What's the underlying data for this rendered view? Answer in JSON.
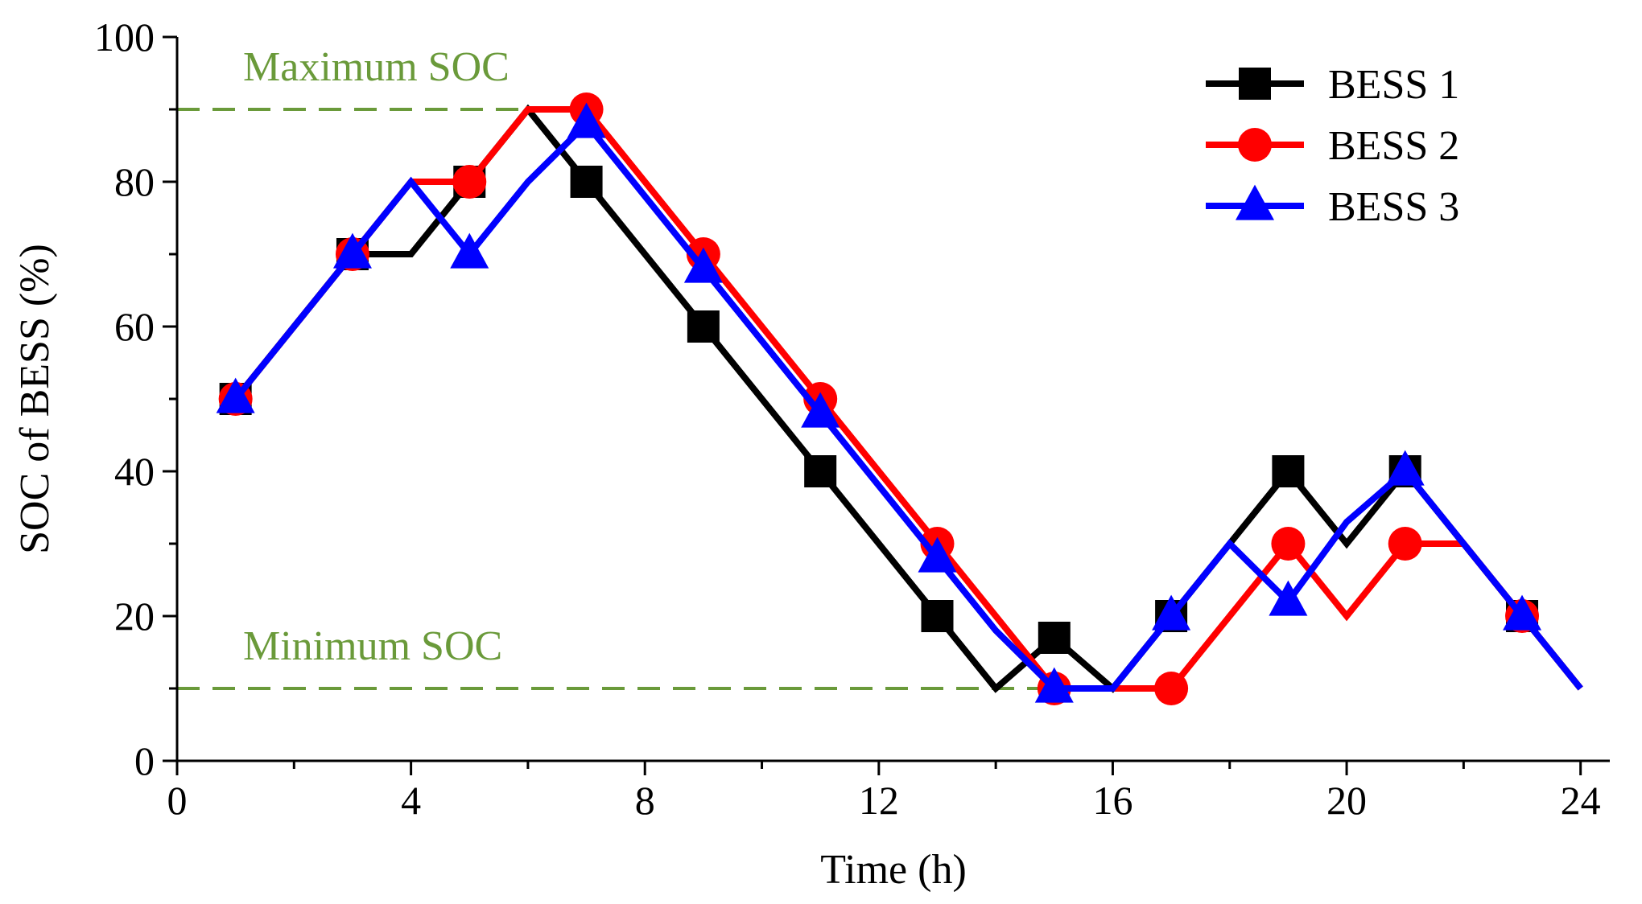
{
  "chart_data": {
    "type": "line",
    "title": "",
    "xlabel": "Time (h)",
    "ylabel": "SOC of BESS (%)",
    "xlim": [
      0,
      24.5
    ],
    "ylim": [
      0,
      100
    ],
    "xticks": [
      0,
      4,
      8,
      12,
      16,
      20,
      24
    ],
    "yticks": [
      0,
      20,
      40,
      60,
      80,
      100
    ],
    "x": [
      1,
      2,
      3,
      4,
      5,
      6,
      7,
      8,
      9,
      10,
      11,
      12,
      13,
      14,
      15,
      16,
      17,
      18,
      19,
      20,
      21,
      22,
      23,
      24
    ],
    "series": [
      {
        "name": "BESS 1",
        "color": "#000000",
        "marker": "square",
        "values": [
          50,
          60,
          70,
          70,
          80,
          90,
          80,
          70,
          60,
          50,
          40,
          30,
          20,
          10,
          17,
          10,
          20,
          30,
          40,
          30,
          40,
          30,
          20,
          10
        ]
      },
      {
        "name": "BESS 2",
        "color": "#ff0000",
        "marker": "circle",
        "values": [
          50,
          60,
          70,
          80,
          80,
          90,
          90,
          80,
          70,
          60,
          50,
          40,
          30,
          20,
          10,
          10,
          10,
          20,
          30,
          20,
          30,
          30,
          20,
          10
        ]
      },
      {
        "name": "BESS 3",
        "color": "#0000ff",
        "marker": "triangle",
        "values": [
          50,
          60,
          70,
          80,
          70,
          80,
          88,
          78,
          68,
          58,
          48,
          38,
          28,
          18,
          10,
          10,
          20,
          30,
          22,
          33,
          40,
          30,
          20,
          10
        ]
      }
    ],
    "reference_lines": [
      {
        "label": "Maximum SOC",
        "y": 90,
        "x_start": 0,
        "x_end": 6,
        "color": "#6a9a3a",
        "style": "dashed"
      },
      {
        "label": "Minimum SOC",
        "y": 10,
        "x_start": 0,
        "x_end": 17,
        "color": "#6a9a3a",
        "style": "dashed"
      }
    ],
    "legend_position": "top-right",
    "grid": false
  }
}
